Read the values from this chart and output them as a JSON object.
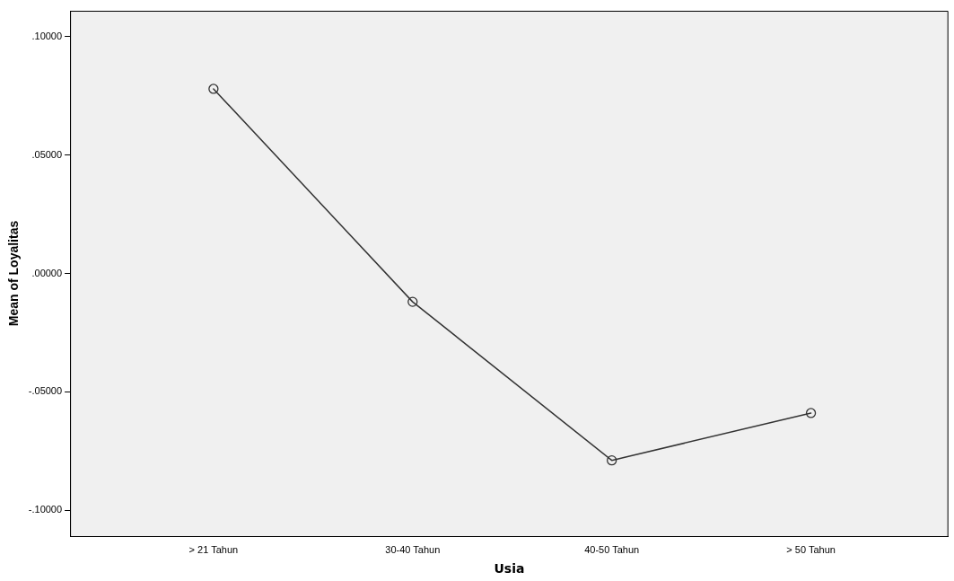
{
  "chart_data": {
    "type": "line",
    "xlabel": "Usia",
    "ylabel": "Mean of Loyalitas",
    "categories": [
      "> 21 Tahun",
      "30-40 Tahun",
      "40-50 Tahun",
      "> 50 Tahun"
    ],
    "series": [
      {
        "color": "#333333",
        "values": [
          0.078,
          -0.012,
          -0.079,
          -0.059
        ]
      }
    ],
    "ylim": [
      -0.111,
      0.111
    ],
    "yticks": [
      {
        "value": -0.1,
        "label": "-.10000"
      },
      {
        "value": -0.05,
        "label": "-.05000"
      },
      {
        "value": 0,
        "label": ".00000"
      },
      {
        "value": 0.05,
        "label": ".05000"
      },
      {
        "value": 0.1,
        "label": ".10000"
      }
    ],
    "grid": false,
    "legend": false,
    "marker": "circle",
    "line_style": "solid"
  }
}
